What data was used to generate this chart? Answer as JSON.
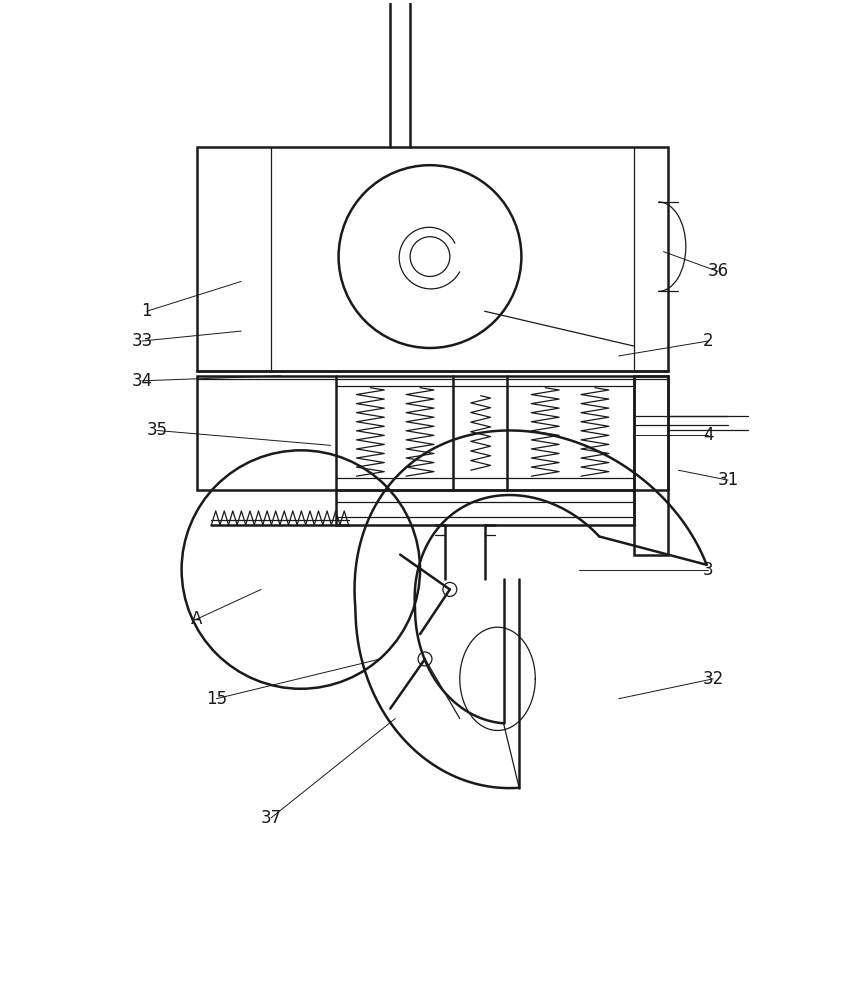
{
  "bg_color": "#ffffff",
  "line_color": "#1a1a1a",
  "lw_main": 1.8,
  "lw_thin": 0.9,
  "fig_w": 8.56,
  "fig_h": 10.0
}
